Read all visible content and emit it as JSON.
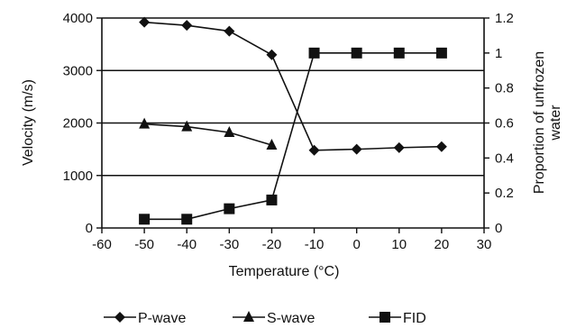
{
  "chart_data": {
    "type": "line",
    "title": "",
    "xlabel": "Temperature (°C)",
    "ylabel_left": "Velocity (m/s)",
    "ylabel_right_line1": "Proportion of unfrozen",
    "ylabel_right_line2": "water",
    "xlim": [
      -60,
      30
    ],
    "ylim_left": [
      0,
      4000
    ],
    "ylim_right": [
      0,
      1.2
    ],
    "x_ticks": [
      -60,
      -50,
      -40,
      -30,
      -20,
      -10,
      0,
      10,
      20,
      30
    ],
    "y_left_ticks": [
      0,
      1000,
      2000,
      3000,
      4000
    ],
    "y_right_ticks": [
      "0",
      "0.2",
      "0.4",
      "0.6",
      "0.8",
      "1",
      "1.2"
    ],
    "grid": "horizontal major lines",
    "legend_position": "bottom",
    "series": [
      {
        "name": "P-wave",
        "axis": "left",
        "marker": "diamond",
        "x": [
          -50,
          -40,
          -30,
          -20,
          -10,
          0,
          10,
          20
        ],
        "y": [
          3920,
          3860,
          3750,
          3300,
          1480,
          1500,
          1530,
          1550
        ]
      },
      {
        "name": "S-wave",
        "axis": "left",
        "marker": "triangle",
        "x": [
          -50,
          -40,
          -30,
          -20
        ],
        "y": [
          1980,
          1930,
          1820,
          1580
        ]
      },
      {
        "name": "FID",
        "axis": "right",
        "marker": "square",
        "x": [
          -50,
          -40,
          -30,
          -20,
          -10,
          0,
          10,
          20
        ],
        "y": [
          0.05,
          0.05,
          0.11,
          0.16,
          1.0,
          1.0,
          1.0,
          1.0
        ]
      }
    ]
  }
}
